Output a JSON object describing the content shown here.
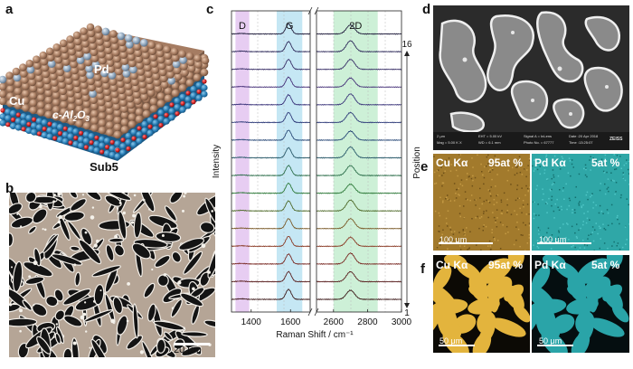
{
  "figure": {
    "panels": {
      "a": {
        "letter": "a",
        "labels": {
          "pd": "Pd",
          "cu": "Cu",
          "substrate": "c-Al",
          "sub2": "2",
          "o": "O",
          "sub3": "3",
          "sample": "Sub5"
        }
      },
      "b": {
        "letter": "b",
        "scalebar": "20 μm"
      },
      "c": {
        "letter": "c"
      },
      "d": {
        "letter": "d",
        "sem_info": {
          "scale": "2 μm",
          "eht": "EHT = 5.00 kV",
          "wd": "WD = 6.1 mm",
          "signal": "Signal A = InLens",
          "photo": "Photo No. = 67777",
          "date": "Date :20 Apr 2018",
          "time": "Time :13:25:07",
          "mag": "Mag = 5.00 K X",
          "brand": "ZEISS"
        }
      },
      "e": {
        "letter": "e",
        "left": {
          "element": "Cu Kα",
          "value": "95at %",
          "scalebar": "100 μm",
          "color": "#a27a2c"
        },
        "right": {
          "element": "Pd Kα",
          "value": "5at %",
          "scalebar": "100 μm",
          "color": "#2fa7a7"
        }
      },
      "f": {
        "letter": "f",
        "left": {
          "element": "Cu Kα",
          "value": "95at %",
          "scalebar": "50 μm",
          "color": "#e3b43d"
        },
        "right": {
          "element": "Pd Kα",
          "value": "5at %",
          "scalebar": "50 μm",
          "color": "#2aa4a8"
        }
      }
    }
  },
  "chart_data": {
    "type": "line",
    "title": "",
    "xlabel": "Raman Shift / cm⁻¹",
    "ylabel": "Intensity",
    "side_label": "Position",
    "position_top": "16",
    "position_bottom": "1",
    "xticks_left": [
      "1400",
      "1600"
    ],
    "xticks_right": [
      "2600",
      "2800",
      "3000"
    ],
    "x_left_range": [
      1300,
      1700
    ],
    "x_right_range": [
      2500,
      3000
    ],
    "bands": [
      {
        "name": "D",
        "range": [
          1320,
          1390
        ],
        "color": "#e7cdf2"
      },
      {
        "name": "G",
        "range": [
          1530,
          1660
        ],
        "color": "#c5e7f4"
      },
      {
        "name": "2D",
        "range": [
          2600,
          2860
        ],
        "color": "#cdf0d7"
      }
    ],
    "series_count": 16,
    "peaks": {
      "G": 1590,
      "2D": 2700
    },
    "colors": [
      "#3d1a1a",
      "#5a2020",
      "#7a2a24",
      "#8a3b26",
      "#7a5a28",
      "#4f6a2a",
      "#2f7a3a",
      "#2c6e4a",
      "#2a5a6a",
      "#2a4a78",
      "#2f3c7a",
      "#3a347a",
      "#453078",
      "#3a3068",
      "#2e2a5a",
      "#23203f"
    ]
  }
}
